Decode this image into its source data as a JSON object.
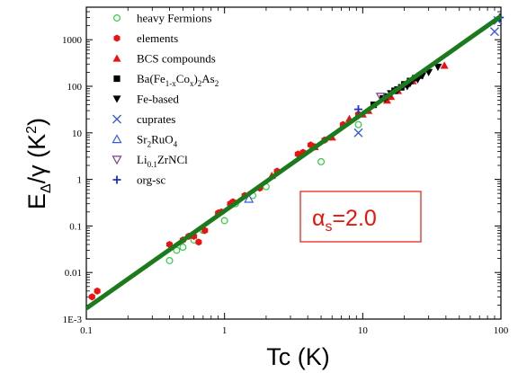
{
  "chart_data": {
    "type": "scatter",
    "title": "",
    "xlabel": "Tc (K)",
    "ylabel_main": "E",
    "ylabel_sub": "Δ",
    "ylabel_rest": "/γ (K",
    "ylabel_sup": "2",
    "ylabel_close": ")",
    "x_scale": "log",
    "y_scale": "log",
    "xlim": [
      0.1,
      100
    ],
    "ylim": [
      0.001,
      5000
    ],
    "x_tick_values": [
      0.1,
      1,
      10,
      100
    ],
    "x_tick_labels": [
      "0.1",
      "1",
      "10",
      "100"
    ],
    "y_tick_values": [
      0.001,
      0.01,
      0.1,
      1,
      10,
      100,
      1000
    ],
    "y_tick_labels": [
      "1E-3",
      "0.01",
      "0.1",
      "1",
      "10",
      "100",
      "1000"
    ],
    "grid": false,
    "legend_position": "top-left",
    "fit_line": {
      "x": [
        0.1,
        100
      ],
      "y": [
        0.0017,
        3200
      ],
      "color": "#1b7a1b"
    },
    "annotation": {
      "main": "α",
      "sub": "s",
      "rest": "=2.0",
      "color": "#e8140c"
    },
    "series": [
      {
        "name": "heavy Fermions",
        "marker": "circle-open",
        "color": "#2ecc40",
        "x": [
          0.4,
          0.45,
          0.5,
          0.6,
          0.7,
          1.0,
          1.2,
          1.6,
          2.0,
          5.0,
          9.3
        ],
        "y": [
          0.018,
          0.03,
          0.035,
          0.05,
          0.08,
          0.13,
          0.3,
          0.45,
          0.7,
          2.4,
          15
        ]
      },
      {
        "name": "elements",
        "marker": "hexagon-filled",
        "color": "#ee1111",
        "x": [
          0.11,
          0.12,
          0.4,
          0.5,
          0.55,
          0.6,
          0.65,
          0.72,
          0.9,
          0.95,
          1.1,
          1.15,
          1.4,
          1.8,
          2.4,
          3.4,
          3.7,
          4.2,
          4.5,
          5.3,
          7.2,
          9.3
        ],
        "y": [
          0.003,
          0.004,
          0.04,
          0.05,
          0.06,
          0.06,
          0.045,
          0.08,
          0.19,
          0.2,
          0.3,
          0.33,
          0.45,
          0.65,
          1.5,
          3.5,
          3.8,
          5.5,
          5.0,
          7.0,
          15,
          25
        ]
      },
      {
        "name": "BCS compounds",
        "marker": "triangle-up",
        "color": "#ee1111",
        "x": [
          2.2,
          4.5,
          6.0,
          8.0,
          10.0,
          11.0,
          15.0,
          16.0,
          18.0,
          23.0,
          39.0
        ],
        "y": [
          1.2,
          5,
          8,
          20,
          25,
          30,
          50,
          60,
          80,
          130,
          280
        ]
      },
      {
        "name": "Ba(Fe1-xCox)2As2",
        "marker": "square-filled",
        "color": "#000000",
        "x": [
          12.0,
          14.0,
          17.0,
          19.0,
          20.0,
          22.0,
          24.0,
          26.0
        ],
        "y": [
          40,
          55,
          80,
          95,
          110,
          130,
          150,
          170
        ]
      },
      {
        "name": "Fe-based",
        "marker": "triangle-down",
        "color": "#000000",
        "x": [
          15.0,
          16.0,
          18.0,
          21.0,
          22.0,
          25.0,
          27.0,
          30.0,
          35.0
        ],
        "y": [
          60,
          70,
          85,
          100,
          115,
          140,
          170,
          200,
          260
        ]
      },
      {
        "name": "cuprates",
        "marker": "x",
        "color": "#3a5be0",
        "x": [
          9.3,
          90,
          95
        ],
        "y": [
          10,
          1500,
          2600
        ]
      },
      {
        "name": "Sr2RuO4",
        "marker": "triangle-up-open",
        "color": "#3a5be0",
        "x": [
          1.5
        ],
        "y": [
          0.38
        ]
      },
      {
        "name": "Li0.1ZrNCl",
        "marker": "triangle-down-open",
        "color": "#7a3b8f",
        "x": [
          13.5
        ],
        "y": [
          60
        ]
      },
      {
        "name": "org-sc",
        "marker": "plus",
        "color": "#1a2fd0",
        "x": [
          9.3,
          98
        ],
        "y": [
          32,
          3000
        ]
      }
    ]
  },
  "legend": [
    {
      "marker": "circle-open",
      "color": "#2ecc40",
      "parts": [
        [
          "heavy Fermions",
          ""
        ]
      ]
    },
    {
      "marker": "hexagon-filled",
      "color": "#ee1111",
      "parts": [
        [
          "elements",
          ""
        ]
      ]
    },
    {
      "marker": "triangle-up",
      "color": "#ee1111",
      "parts": [
        [
          "BCS compounds",
          ""
        ]
      ]
    },
    {
      "marker": "square-filled",
      "color": "#000000",
      "parts": [
        [
          "Ba(Fe",
          ""
        ],
        [
          "1-x",
          "sub"
        ],
        [
          "Co",
          ""
        ],
        [
          "x",
          "sub"
        ],
        [
          ")",
          ""
        ],
        [
          "2",
          "sub"
        ],
        [
          "As",
          ""
        ],
        [
          "2",
          "sub"
        ]
      ]
    },
    {
      "marker": "triangle-down",
      "color": "#000000",
      "parts": [
        [
          "Fe-based",
          ""
        ]
      ]
    },
    {
      "marker": "x",
      "color": "#3a5be0",
      "parts": [
        [
          "cuprates",
          ""
        ]
      ]
    },
    {
      "marker": "triangle-up-open",
      "color": "#3a5be0",
      "parts": [
        [
          "Sr",
          ""
        ],
        [
          "2",
          "sub"
        ],
        [
          "RuO",
          ""
        ],
        [
          "4",
          "sub"
        ]
      ]
    },
    {
      "marker": "triangle-down-open",
      "color": "#7a3b8f",
      "parts": [
        [
          "Li",
          ""
        ],
        [
          "0.1",
          "sub"
        ],
        [
          "ZrNCl",
          ""
        ]
      ]
    },
    {
      "marker": "plus",
      "color": "#1a2fd0",
      "parts": [
        [
          "org-sc",
          ""
        ]
      ]
    }
  ]
}
